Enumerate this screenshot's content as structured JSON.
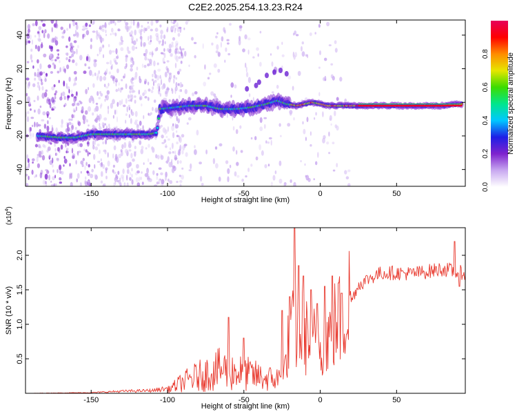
{
  "title": "C2E2.2025.254.13.23.R24",
  "chart_data": [
    {
      "type": "heatmap",
      "xlabel": "Height of straight line (km)",
      "ylabel": "Frequency (Hz)",
      "xlim": [
        -193,
        95
      ],
      "ylim": [
        -50,
        49
      ],
      "xticks": [
        -150,
        -100,
        -50,
        0,
        50
      ],
      "yticks": [
        -40,
        -20,
        0,
        20,
        40
      ],
      "colorbar": {
        "label": "Normalized spectral amplitude",
        "range": [
          0,
          1
        ],
        "ticks": [
          0.0,
          0.2,
          0.4,
          0.6,
          0.8
        ],
        "colors": [
          "#ffffff",
          "#c8a8f0",
          "#7e22ce",
          "#1e1ee6",
          "#00c8ff",
          "#00e68c",
          "#3cdc00",
          "#e6e600",
          "#ff8c00",
          "#ff0000",
          "#e6005a"
        ]
      },
      "ridge": [
        {
          "x": -185,
          "y": -20
        },
        {
          "x": -170,
          "y": -21
        },
        {
          "x": -160,
          "y": -21
        },
        {
          "x": -150,
          "y": -19
        },
        {
          "x": -140,
          "y": -19
        },
        {
          "x": -130,
          "y": -19
        },
        {
          "x": -120,
          "y": -19
        },
        {
          "x": -112,
          "y": -19
        },
        {
          "x": -107,
          "y": -18
        },
        {
          "x": -105,
          "y": -4
        },
        {
          "x": -95,
          "y": -3
        },
        {
          "x": -85,
          "y": -2
        },
        {
          "x": -75,
          "y": -2
        },
        {
          "x": -65,
          "y": -4
        },
        {
          "x": -55,
          "y": -4
        },
        {
          "x": -45,
          "y": -3
        },
        {
          "x": -35,
          "y": -1
        },
        {
          "x": -28,
          "y": 1
        },
        {
          "x": -22,
          "y": -1
        },
        {
          "x": -15,
          "y": -2
        },
        {
          "x": -5,
          "y": 0
        },
        {
          "x": 5,
          "y": -2
        },
        {
          "x": 20,
          "y": -2
        },
        {
          "x": 50,
          "y": -2
        },
        {
          "x": 80,
          "y": -2
        },
        {
          "x": 93,
          "y": -1
        }
      ]
    },
    {
      "type": "line",
      "xlabel": "Height of straight line (km)",
      "ylabel": "SNR (10 * v/v)",
      "y_multiplier": "(x10",
      "y_multiplier_exp": "4",
      "y_multiplier_close": ")",
      "xlim": [
        -193,
        95
      ],
      "ylim": [
        0,
        2.4
      ],
      "xticks": [
        -150,
        -100,
        -50,
        0,
        50
      ],
      "yticks": [
        0.5,
        1.0,
        1.5,
        2.0
      ],
      "color": "#e8392e",
      "envelope": [
        {
          "x": -193,
          "y": 0.0
        },
        {
          "x": -150,
          "y": 0.01
        },
        {
          "x": -130,
          "y": 0.03
        },
        {
          "x": -110,
          "y": 0.04
        },
        {
          "x": -100,
          "y": 0.07
        },
        {
          "x": -92,
          "y": 0.2
        },
        {
          "x": -85,
          "y": 0.3
        },
        {
          "x": -75,
          "y": 0.4
        },
        {
          "x": -65,
          "y": 0.5
        },
        {
          "x": -55,
          "y": 0.45
        },
        {
          "x": -45,
          "y": 0.38
        },
        {
          "x": -35,
          "y": 0.3
        },
        {
          "x": -25,
          "y": 0.3
        },
        {
          "x": -22,
          "y": 0.6
        },
        {
          "x": -18,
          "y": 0.85
        },
        {
          "x": -14,
          "y": 0.9
        },
        {
          "x": -10,
          "y": 0.8
        },
        {
          "x": -5,
          "y": 0.72
        },
        {
          "x": 0,
          "y": 0.75
        },
        {
          "x": 5,
          "y": 0.78
        },
        {
          "x": 10,
          "y": 0.95
        },
        {
          "x": 15,
          "y": 1.05
        },
        {
          "x": 20,
          "y": 1.35
        },
        {
          "x": 25,
          "y": 1.6
        },
        {
          "x": 32,
          "y": 1.7
        },
        {
          "x": 40,
          "y": 1.78
        },
        {
          "x": 50,
          "y": 1.78
        },
        {
          "x": 60,
          "y": 1.77
        },
        {
          "x": 70,
          "y": 1.8
        },
        {
          "x": 80,
          "y": 1.84
        },
        {
          "x": 88,
          "y": 1.8
        },
        {
          "x": 95,
          "y": 1.78
        }
      ],
      "spikes": [
        {
          "x": -60,
          "y": 1.1
        },
        {
          "x": -50,
          "y": 0.8
        },
        {
          "x": -25,
          "y": 1.2
        },
        {
          "x": -20,
          "y": 1.4
        },
        {
          "x": -17,
          "y": 2.4
        },
        {
          "x": -14,
          "y": 1.85
        },
        {
          "x": -11,
          "y": 1.7
        },
        {
          "x": -6,
          "y": 1.5
        },
        {
          "x": -2,
          "y": 1.3
        },
        {
          "x": 3,
          "y": 1.55
        },
        {
          "x": 8,
          "y": 1.7
        },
        {
          "x": 12,
          "y": 1.6
        },
        {
          "x": 14,
          "y": 1.45
        },
        {
          "x": 88,
          "y": 2.2
        },
        {
          "x": 91,
          "y": 1.55
        }
      ]
    }
  ]
}
